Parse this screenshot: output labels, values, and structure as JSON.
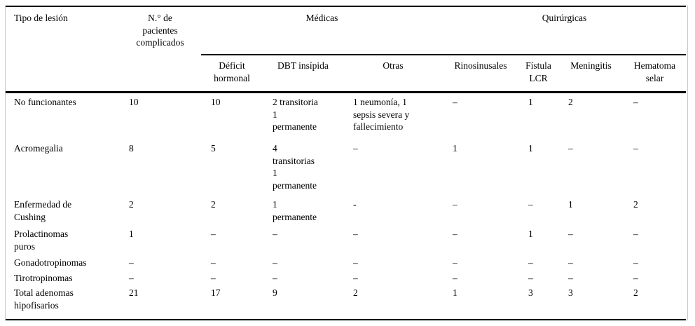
{
  "table": {
    "col1_header": "Tipo de lesión",
    "col2_header": "N.° de\npacientes\ncomplicados",
    "groups": [
      {
        "label": "Médicas"
      },
      {
        "label": "Quirúrgicas"
      }
    ],
    "subheaders": [
      "Déficit\nhormonal",
      "DBT insípida",
      "Otras",
      "Rinosinusales",
      "Fístula\nLCR",
      "Meningitis",
      "Hematoma\nselar"
    ],
    "rows": [
      {
        "label": "No funcionantes",
        "cells": [
          "10",
          "10",
          "2 transitoria\n1\npermanente",
          "1 neumonía, 1\nsepsis severa y\nfallecimiento",
          "–",
          "1",
          "2",
          "–"
        ]
      },
      {
        "label": "Acromegalia",
        "cells": [
          "8",
          "5",
          "4\ntransitorias\n1\npermanente",
          "–",
          "1",
          "1",
          "–",
          "–"
        ]
      },
      {
        "label": "Enfermedad de\nCushing",
        "cells": [
          "2",
          "2",
          "1\npermanente",
          "-",
          "–",
          "–",
          "1",
          "2"
        ]
      },
      {
        "label": "Prolactinomas\npuros",
        "cells": [
          "1",
          "–",
          "–",
          "–",
          "–",
          "1",
          "–",
          "–"
        ]
      },
      {
        "label": "Gonadotropinomas",
        "cells": [
          "–",
          "–",
          "–",
          "–",
          "–",
          "–",
          "–",
          "–"
        ]
      },
      {
        "label": "Tirotropinomas",
        "cells": [
          "–",
          "–",
          "–",
          "–",
          "–",
          "–",
          "–",
          "–"
        ]
      },
      {
        "label": "Total adenomas\nhipofisarios",
        "cells": [
          "21",
          "17",
          "9",
          "2",
          "1",
          "3",
          "3",
          "2"
        ]
      }
    ],
    "colors": {
      "rule": "#000000",
      "frame_border": "#c9c9c9",
      "background": "#ffffff",
      "text": "#000000"
    }
  }
}
